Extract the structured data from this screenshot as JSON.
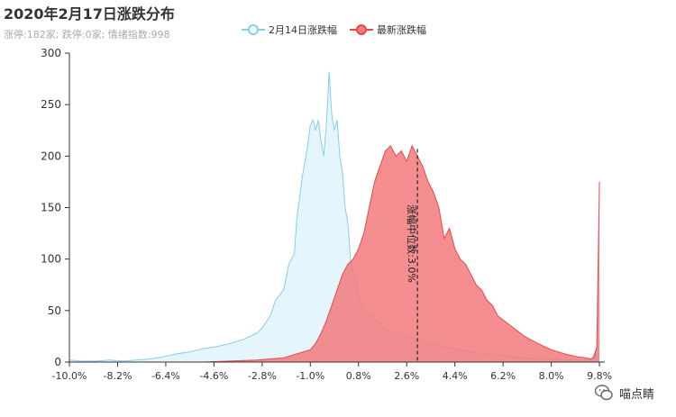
{
  "header": {
    "title": "2020年2月17日涨跌分布",
    "subtitle": "涨停:182家; 跌停:0家; 情绪指数:998"
  },
  "watermark": {
    "text": "喵点睛"
  },
  "colors": {
    "prev": "#87CEEB",
    "prev_fill": "#dff3fb",
    "latest": "#e8484c",
    "latest_fill": "#f27a7d",
    "axis": "#333333"
  },
  "chart_data": {
    "type": "area",
    "title": "2020年2月17日涨跌分布",
    "subtitle": "涨停:182家; 跌停:0家; 情绪指数:998",
    "xlabel": "",
    "ylabel": "",
    "xlim": [
      -10.0,
      10.0
    ],
    "ylim": [
      0,
      300
    ],
    "yticks": [
      0,
      50,
      100,
      150,
      200,
      250,
      300
    ],
    "xticks": [
      "-10.0%",
      "-8.2%",
      "-6.4%",
      "-4.6%",
      "-2.8%",
      "-1.0%",
      "0.8%",
      "2.6%",
      "4.4%",
      "6.2%",
      "8.0%",
      "9.8%"
    ],
    "xtick_values": [
      -10.0,
      -8.2,
      -6.4,
      -4.6,
      -2.8,
      -1.0,
      0.8,
      2.6,
      4.4,
      6.2,
      8.0,
      9.8
    ],
    "legend_position": "top-center",
    "grid": false,
    "annotation": {
      "text": "涨幅中位数:3.0%",
      "x": 3.0
    },
    "series": [
      {
        "name": "2月14日涨跌幅",
        "x": [
          -10.0,
          -9.6,
          -9.0,
          -8.5,
          -8.0,
          -7.5,
          -7.0,
          -6.5,
          -6.0,
          -5.5,
          -5.0,
          -4.5,
          -4.0,
          -3.5,
          -3.0,
          -2.8,
          -2.5,
          -2.3,
          -2.0,
          -1.8,
          -1.6,
          -1.5,
          -1.4,
          -1.3,
          -1.2,
          -1.1,
          -1.0,
          -0.9,
          -0.8,
          -0.7,
          -0.6,
          -0.5,
          -0.4,
          -0.3,
          -0.2,
          -0.1,
          0.0,
          0.1,
          0.2,
          0.3,
          0.4,
          0.5,
          0.6,
          0.7,
          0.8,
          0.9,
          1.0,
          1.2,
          1.5,
          1.8,
          2.0,
          2.3,
          2.6,
          3.0,
          3.5,
          4.0,
          4.5,
          5.0,
          5.5,
          6.0,
          6.5,
          7.0,
          7.5,
          8.0,
          8.5,
          9.0,
          9.5,
          9.8
        ],
        "values": [
          2,
          1,
          1,
          2,
          1,
          2,
          3,
          5,
          8,
          10,
          13,
          15,
          18,
          22,
          28,
          33,
          45,
          60,
          70,
          95,
          105,
          140,
          160,
          180,
          195,
          210,
          230,
          235,
          225,
          235,
          215,
          200,
          230,
          282,
          240,
          225,
          235,
          200,
          185,
          150,
          135,
          100,
          85,
          80,
          65,
          55,
          50,
          45,
          40,
          32,
          30,
          28,
          25,
          22,
          18,
          15,
          12,
          10,
          8,
          7,
          5,
          4,
          3,
          3,
          2,
          2,
          2,
          20
        ]
      },
      {
        "name": "最新涨跌幅",
        "x": [
          -10.0,
          -9.0,
          -8.0,
          -7.0,
          -6.0,
          -5.0,
          -4.0,
          -3.0,
          -2.0,
          -1.5,
          -1.0,
          -0.8,
          -0.6,
          -0.4,
          -0.2,
          0.0,
          0.2,
          0.4,
          0.6,
          0.8,
          1.0,
          1.2,
          1.4,
          1.6,
          1.8,
          2.0,
          2.2,
          2.4,
          2.6,
          2.8,
          3.0,
          3.2,
          3.4,
          3.6,
          3.8,
          4.0,
          4.2,
          4.4,
          4.6,
          4.8,
          5.0,
          5.2,
          5.4,
          5.6,
          5.8,
          6.0,
          6.5,
          7.0,
          7.5,
          8.0,
          8.5,
          9.0,
          9.3,
          9.5,
          9.6,
          9.7,
          9.75,
          9.8
        ],
        "values": [
          0,
          0,
          0,
          0,
          0,
          0,
          1,
          2,
          4,
          8,
          12,
          18,
          28,
          40,
          55,
          70,
          85,
          95,
          100,
          110,
          125,
          150,
          175,
          190,
          205,
          210,
          200,
          205,
          195,
          210,
          200,
          190,
          175,
          165,
          150,
          120,
          130,
          110,
          100,
          95,
          85,
          75,
          70,
          60,
          55,
          45,
          35,
          25,
          18,
          12,
          8,
          5,
          4,
          3,
          5,
          15,
          95,
          175
        ]
      }
    ]
  }
}
